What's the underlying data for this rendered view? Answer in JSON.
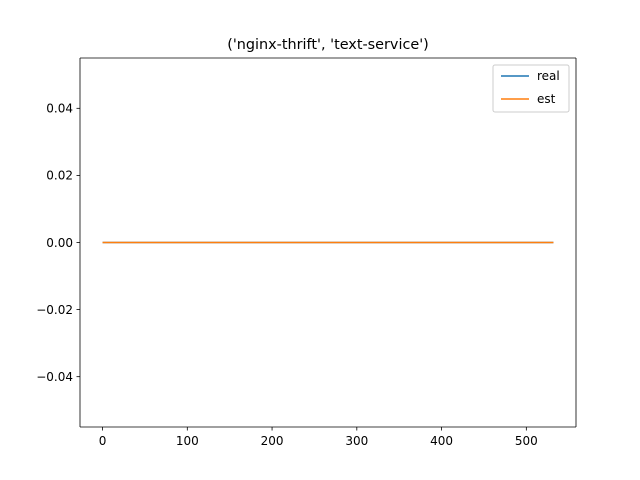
{
  "chart_data": {
    "type": "line",
    "title": "('nginx-thrift', 'text-service')",
    "xlabel": "",
    "ylabel": "",
    "xlim": [
      -26.6,
      558.6
    ],
    "ylim": [
      -0.055,
      0.055
    ],
    "xticks": [
      0,
      100,
      200,
      300,
      400,
      500
    ],
    "xtick_labels": [
      "0",
      "100",
      "200",
      "300",
      "400",
      "500"
    ],
    "yticks": [
      -0.04,
      -0.02,
      0.0,
      0.02,
      0.04
    ],
    "ytick_labels": [
      "−0.04",
      "−0.02",
      "0.00",
      "0.02",
      "0.04"
    ],
    "grid": false,
    "legend_position": "top-right",
    "series": [
      {
        "name": "real",
        "color": "#1f77b4",
        "x": [
          0,
          532
        ],
        "y": [
          0,
          0
        ]
      },
      {
        "name": "est",
        "color": "#ff7f0e",
        "x": [
          0,
          532
        ],
        "y": [
          0,
          0
        ]
      }
    ]
  }
}
